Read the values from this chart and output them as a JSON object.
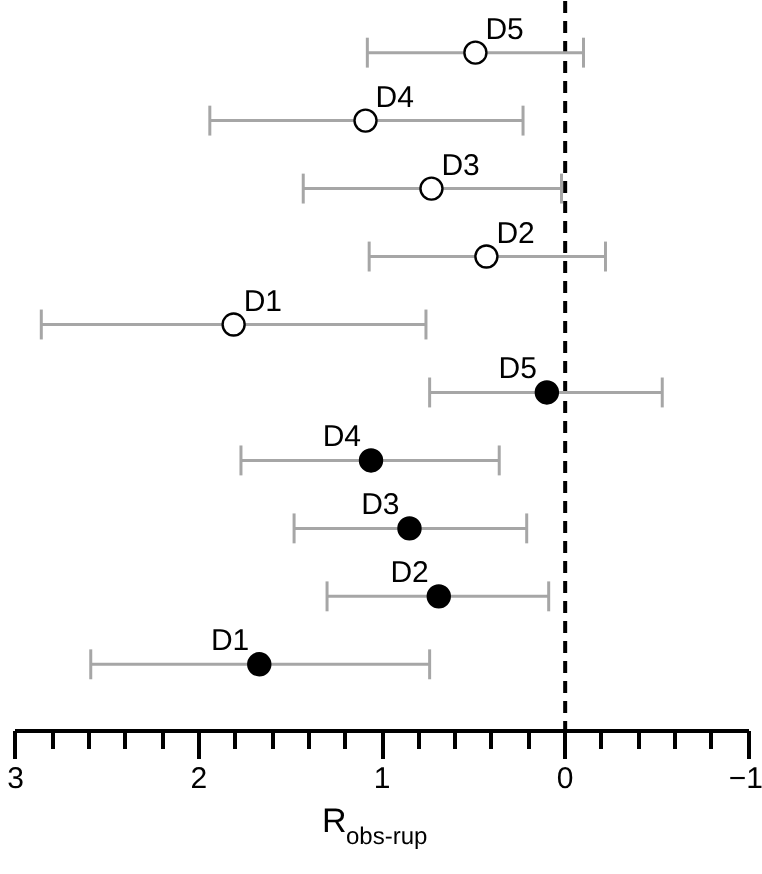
{
  "chart_data": {
    "type": "scatter",
    "orientation": "horizontal",
    "xlabel": "R$_{obs-rup}$",
    "categories": [
      null,
      null,
      null,
      null,
      null,
      null,
      null,
      null,
      null,
      null
    ],
    "series": [
      {
        "color": "#ffffff",
        "values": [
          0.49,
          1.09,
          0.73,
          0.43,
          1.81,
          null,
          null,
          null,
          null,
          null
        ],
        "errors": [
          [
            1.08,
            -0.1
          ],
          [
            1.94,
            0.23
          ],
          [
            1.43,
            0.02
          ],
          [
            1.07,
            -0.22
          ],
          [
            2.86,
            0.76
          ],
          null,
          null,
          null,
          null,
          null
        ],
        "value_labels": [
          "D5",
          "D4",
          "D3",
          "D2",
          "D1",
          null,
          null,
          null,
          null,
          null
        ]
      },
      {
        "color": "#000000",
        "values": [
          null,
          null,
          null,
          null,
          null,
          0.1,
          1.06,
          0.85,
          0.69,
          1.67
        ],
        "errors": [
          null,
          null,
          null,
          null,
          null,
          [
            0.74,
            -0.53
          ],
          [
            1.77,
            0.36
          ],
          [
            1.48,
            0.21
          ],
          [
            1.3,
            0.09
          ],
          [
            2.59,
            0.74
          ]
        ],
        "value_labels": [
          null,
          null,
          null,
          null,
          null,
          "D5",
          "D4",
          "D3",
          "D2",
          "D1"
        ]
      }
    ],
    "xlim": [
      3,
      -1
    ],
    "xticks": [
      3,
      {
        "value": 2.8,
        "label": null
      },
      {
        "value": 2.6,
        "label": null
      },
      {
        "value": 2.4,
        "label": null
      },
      {
        "value": 2.2,
        "label": null
      },
      2,
      {
        "value": 1.8,
        "label": null
      },
      {
        "value": 1.6,
        "label": null
      },
      {
        "value": 1.4,
        "label": null
      },
      {
        "value": 1.2,
        "label": null
      },
      1,
      {
        "value": 0.8,
        "label": null
      },
      {
        "value": 0.6,
        "label": null
      },
      {
        "value": 0.4,
        "label": null
      },
      {
        "value": 0.2,
        "label": null
      },
      0,
      {
        "value": -0.2,
        "label": null
      },
      {
        "value": -0.4,
        "label": null
      },
      {
        "value": -0.6,
        "label": null
      },
      {
        "value": -0.8,
        "label": null
      },
      -1
    ],
    "ref_lines": [
      {
        "axis": "x",
        "value": 0,
        "color": "#000000",
        "line_style": "dashed"
      }
    ],
    "marker": "circle",
    "grid": false,
    "legend": false,
    "tick_labels": "x"
  }
}
